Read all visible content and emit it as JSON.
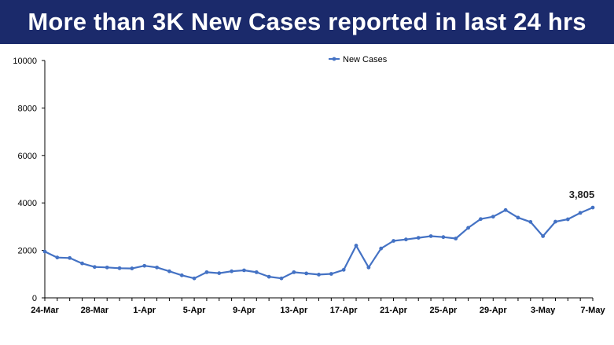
{
  "header": {
    "title": "More than 3K New Cases reported in last 24 hrs"
  },
  "colors": {
    "banner": "#1b2a6b",
    "series": "#4472c4",
    "axis": "#000000"
  },
  "chart_data": {
    "type": "line",
    "title": "",
    "xlabel": "",
    "ylabel": "",
    "ylim": [
      0,
      10000
    ],
    "yticks": [
      0,
      2000,
      4000,
      6000,
      8000,
      10000
    ],
    "grid": false,
    "legend_position": "top-center",
    "x": [
      "24-Mar",
      "25-Mar",
      "26-Mar",
      "27-Mar",
      "28-Mar",
      "29-Mar",
      "30-Mar",
      "31-Mar",
      "1-Apr",
      "2-Apr",
      "3-Apr",
      "4-Apr",
      "5-Apr",
      "6-Apr",
      "7-Apr",
      "8-Apr",
      "9-Apr",
      "10-Apr",
      "11-Apr",
      "12-Apr",
      "13-Apr",
      "14-Apr",
      "15-Apr",
      "16-Apr",
      "17-Apr",
      "18-Apr",
      "19-Apr",
      "20-Apr",
      "21-Apr",
      "22-Apr",
      "23-Apr",
      "24-Apr",
      "25-Apr",
      "26-Apr",
      "27-Apr",
      "28-Apr",
      "29-Apr",
      "30-Apr",
      "1-May",
      "2-May",
      "3-May",
      "4-May",
      "5-May",
      "6-May",
      "7-May"
    ],
    "xtick_labels": [
      "24-Mar",
      "28-Mar",
      "1-Apr",
      "5-Apr",
      "9-Apr",
      "13-Apr",
      "17-Apr",
      "21-Apr",
      "25-Apr",
      "29-Apr",
      "3-May",
      "7-May"
    ],
    "series": [
      {
        "name": "New Cases",
        "values": [
          1950,
          1700,
          1680,
          1450,
          1300,
          1280,
          1250,
          1240,
          1350,
          1280,
          1120,
          950,
          820,
          1080,
          1040,
          1120,
          1160,
          1080,
          890,
          820,
          1080,
          1030,
          980,
          1010,
          1180,
          2200,
          1280,
          2080,
          2400,
          2460,
          2530,
          2600,
          2560,
          2500,
          2950,
          3320,
          3420,
          3700,
          3380,
          3200,
          2600,
          3210,
          3310,
          3580,
          3805
        ]
      }
    ],
    "annotations": [
      {
        "x": "7-May",
        "label": "3,805"
      }
    ]
  }
}
